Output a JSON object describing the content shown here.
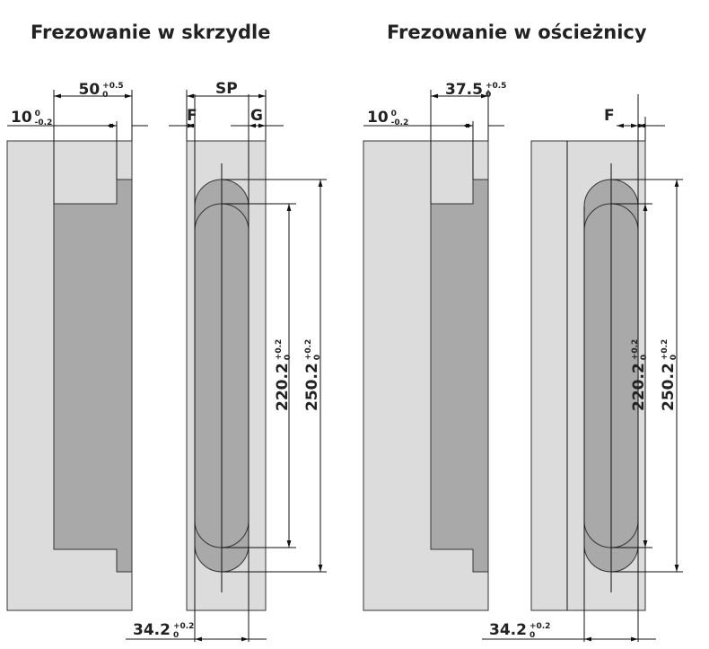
{
  "left": {
    "title": "Frezowanie w skrzydle",
    "width_dim": {
      "value": "50",
      "upper": "+0.5",
      "lower": "0"
    },
    "offset_dim": {
      "value": "10",
      "upper": "0",
      "lower": "-0.2"
    },
    "sp": "SP",
    "f": "F",
    "g": "G",
    "inner_dim": {
      "value": "220.2",
      "upper": "+0.2",
      "lower": "0"
    },
    "outer_dim": {
      "value": "250.2",
      "upper": "+0.2",
      "lower": "0"
    },
    "slot_dim": {
      "value": "34.2",
      "upper": "+0.2",
      "lower": "0"
    }
  },
  "right": {
    "title": "Frezowanie w ościeżnicy",
    "width_dim": {
      "value": "37.5",
      "upper": "+0.5",
      "lower": "0"
    },
    "offset_dim": {
      "value": "10",
      "upper": "0",
      "lower": "-0.2"
    },
    "f": "F",
    "inner_dim": {
      "value": "220.2",
      "upper": "+0.2",
      "lower": "0"
    },
    "outer_dim": {
      "value": "250.2",
      "upper": "+0.2",
      "lower": "0"
    },
    "slot_dim": {
      "value": "34.2",
      "upper": "+0.2",
      "lower": "0"
    }
  }
}
